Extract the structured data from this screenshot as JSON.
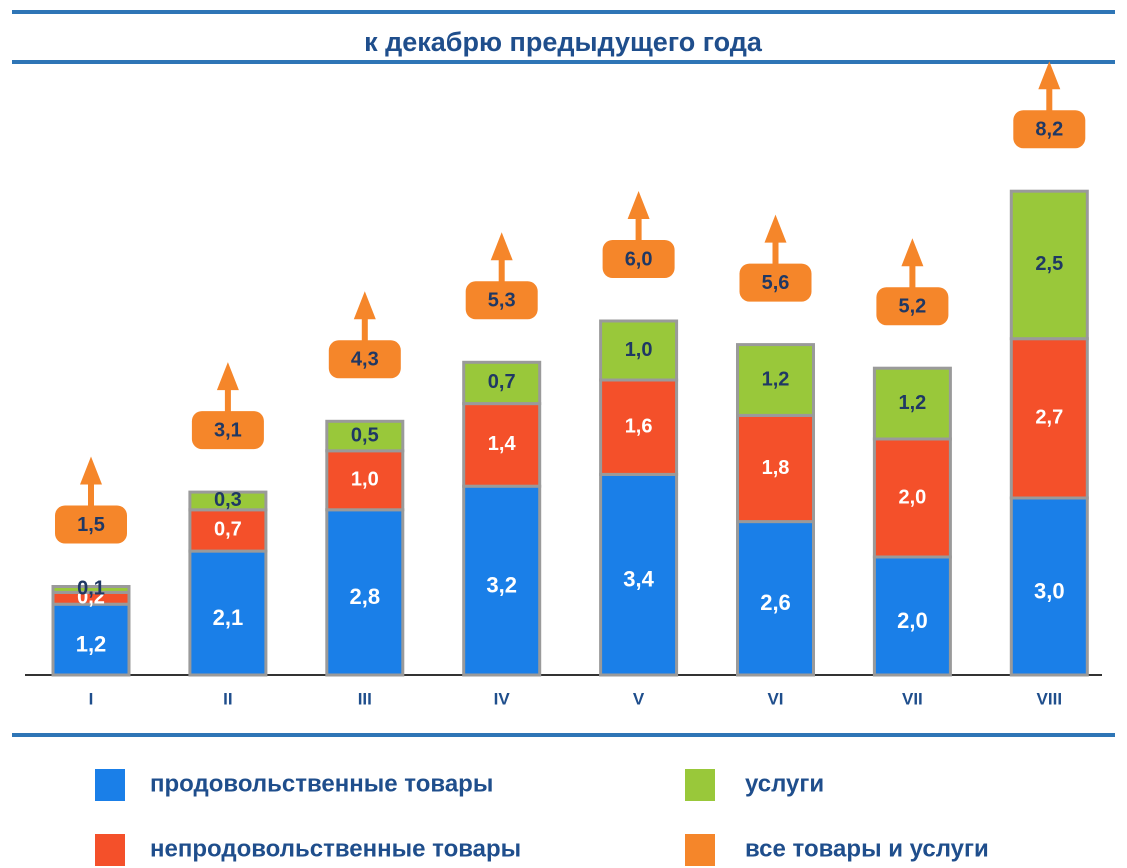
{
  "chart_data": {
    "type": "bar",
    "stacked": true,
    "title": "к декабрю предыдущего года",
    "categories": [
      "I",
      "II",
      "III",
      "IV",
      "V",
      "VI",
      "VII",
      "VIII"
    ],
    "series": [
      {
        "name": "продовольственные товары",
        "color": "#1a7fe8",
        "values": [
          1.2,
          2.1,
          2.8,
          3.2,
          3.4,
          2.6,
          2.0,
          3.0
        ],
        "value_labels": [
          "1,2",
          "2,1",
          "2,8",
          "3,2",
          "3,4",
          "2,6",
          "2,0",
          "3,0"
        ]
      },
      {
        "name": "непродовольственные товары",
        "color": "#f4502a",
        "values": [
          0.2,
          0.7,
          1.0,
          1.4,
          1.6,
          1.8,
          2.0,
          2.7
        ],
        "value_labels": [
          "0,2",
          "0,7",
          "1,0",
          "1,4",
          "1,6",
          "1,8",
          "2,0",
          "2,7"
        ]
      },
      {
        "name": "услуги",
        "color": "#99c83a",
        "values": [
          0.1,
          0.3,
          0.5,
          0.7,
          1.0,
          1.2,
          1.2,
          2.5
        ],
        "value_labels": [
          "0,1",
          "0,3",
          "0,5",
          "0,7",
          "1,0",
          "1,2",
          "1,2",
          "2,5"
        ]
      },
      {
        "name": "все товары и услуги",
        "color": "#f5862a",
        "values": [
          1.5,
          3.1,
          4.3,
          5.3,
          6.0,
          5.6,
          5.2,
          8.2
        ],
        "value_labels": [
          "1,5",
          "3,1",
          "4,3",
          "5,3",
          "6,0",
          "5,6",
          "5,2",
          "8,2"
        ]
      }
    ]
  }
}
